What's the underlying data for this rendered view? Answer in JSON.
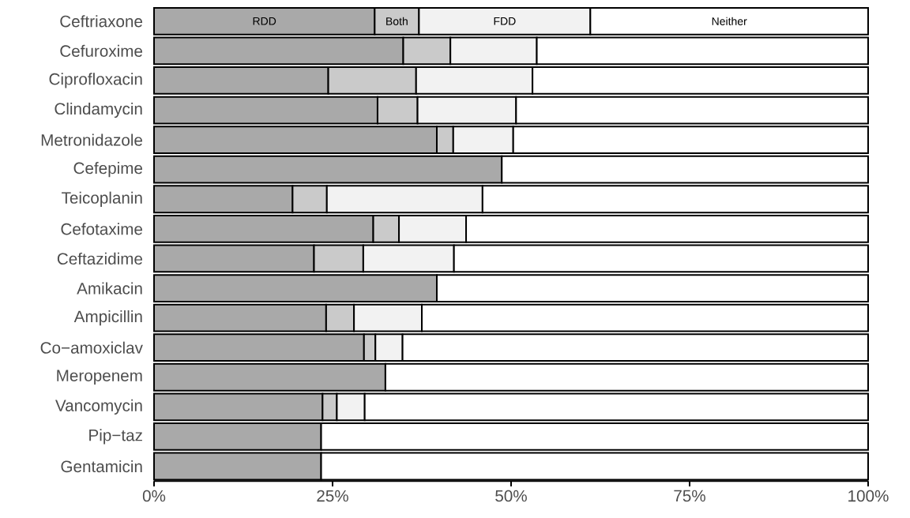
{
  "chart_data": {
    "type": "bar",
    "orientation": "horizontal",
    "stacked": true,
    "categories": [
      "Ceftriaxone",
      "Cefuroxime",
      "Ciprofloxacin",
      "Clindamycin",
      "Metronidazole",
      "Cefepime",
      "Teicoplanin",
      "Cefotaxime",
      "Ceftazidime",
      "Amikacin",
      "Ampicillin",
      "Co−amoxiclav",
      "Meropenem",
      "Vancomycin",
      "Pip−taz",
      "Gentamicin"
    ],
    "series": [
      {
        "name": "RDD",
        "color": "#a9a9a9",
        "values": [
          30.9,
          34.9,
          24.4,
          31.3,
          39.6,
          48.7,
          19.4,
          30.7,
          22.4,
          39.6,
          24.1,
          29.4,
          32.4,
          23.6,
          23.4,
          23.4
        ]
      },
      {
        "name": "Both",
        "color": "#cacaca",
        "values": [
          6.2,
          6.6,
          12.3,
          5.6,
          2.3,
          0,
          4.8,
          3.6,
          6.9,
          0,
          3.9,
          1.6,
          0,
          2.0,
          0,
          0
        ]
      },
      {
        "name": "FDD",
        "color": "#f2f2f2",
        "values": [
          24.0,
          12.1,
          16.3,
          13.8,
          8.4,
          0,
          21.8,
          9.4,
          12.7,
          0,
          9.5,
          3.8,
          0,
          3.9,
          0,
          0
        ]
      },
      {
        "name": "Neither",
        "color": "#ffffff",
        "values": [
          38.9,
          46.4,
          47.0,
          49.3,
          49.7,
          51.3,
          54.0,
          56.3,
          58.0,
          60.4,
          62.5,
          65.2,
          67.6,
          70.5,
          76.6,
          76.6
        ]
      }
    ],
    "xlim": [
      0,
      100
    ],
    "xticks": [
      {
        "value": 0,
        "label": "0%"
      },
      {
        "value": 25,
        "label": "25%"
      },
      {
        "value": 50,
        "label": "50%"
      },
      {
        "value": 75,
        "label": "75%"
      },
      {
        "value": 100,
        "label": "100%"
      }
    ]
  }
}
